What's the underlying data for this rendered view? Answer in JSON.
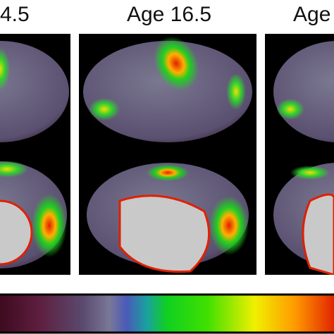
{
  "panels": [
    {
      "label": "4.5"
    },
    {
      "label": "Age 16.5"
    },
    {
      "label": "Age"
    }
  ]
}
